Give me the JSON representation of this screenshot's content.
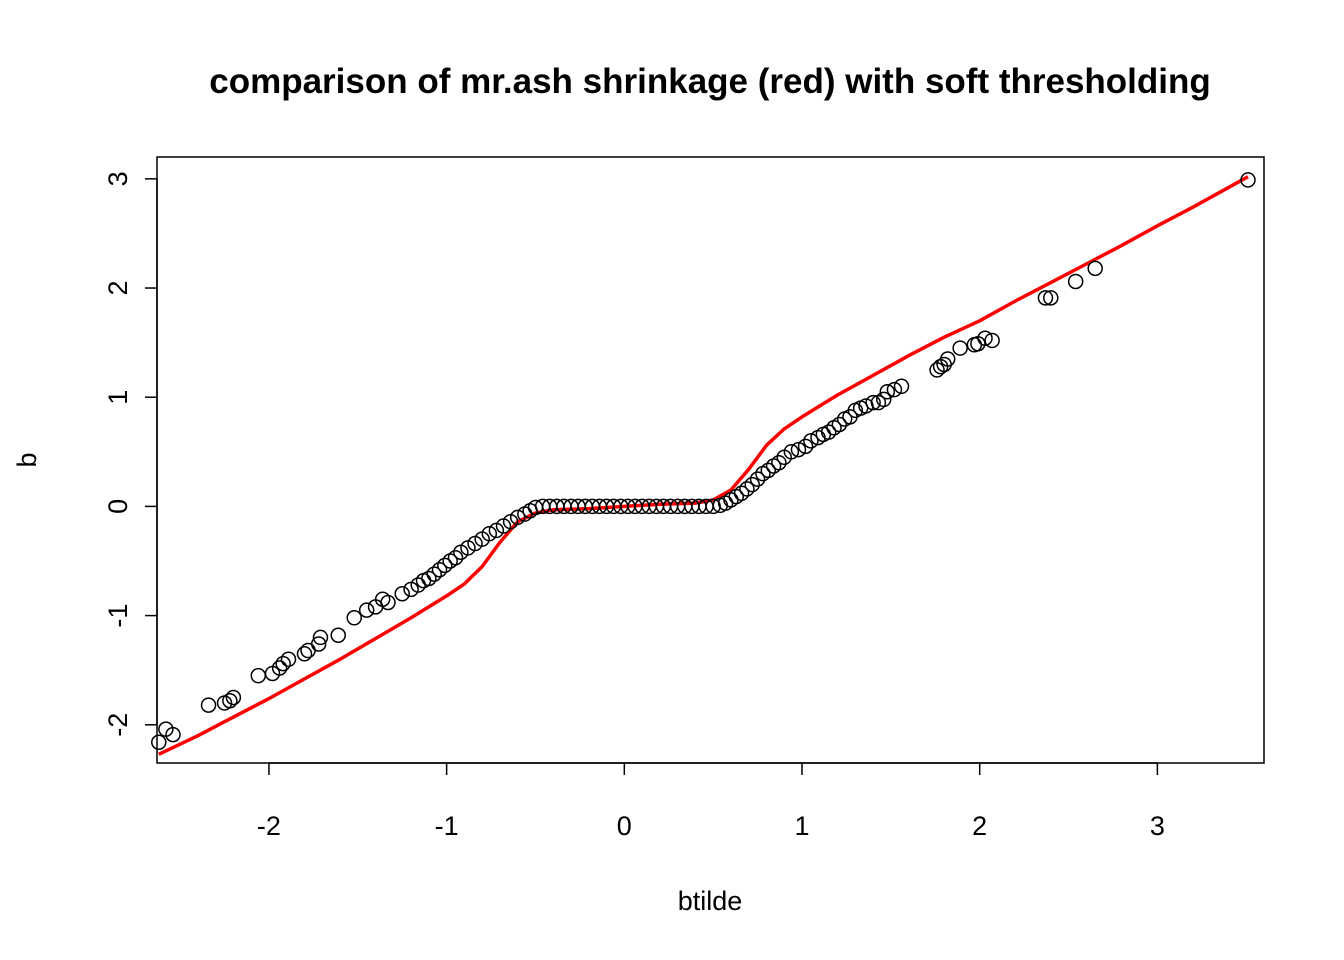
{
  "chart_data": {
    "type": "scatter",
    "title": "comparison of mr.ash shrinkage (red) with soft thresholding",
    "xlabel": "btilde",
    "ylabel": "b",
    "xlim": [
      -2.63,
      3.6
    ],
    "ylim": [
      -2.35,
      3.2
    ],
    "x_ticks": [
      -2,
      -1,
      0,
      1,
      2,
      3
    ],
    "x_tick_labels": [
      "-2",
      "-1",
      "0",
      "1",
      "2",
      "3"
    ],
    "y_ticks": [
      -2,
      -1,
      0,
      1,
      2,
      3
    ],
    "y_tick_labels": [
      "-2",
      "-1",
      "0",
      "1",
      "2",
      "3"
    ],
    "grid": false,
    "legend": "none",
    "series": [
      {
        "marker": "open-circle",
        "color": "#000000",
        "points": [
          [
            3.51,
            2.99
          ],
          [
            2.65,
            2.18
          ],
          [
            2.54,
            2.06
          ],
          [
            2.4,
            1.91
          ],
          [
            2.37,
            1.91
          ],
          [
            2.07,
            1.52
          ],
          [
            2.03,
            1.54
          ],
          [
            1.99,
            1.49
          ],
          [
            1.97,
            1.48
          ],
          [
            1.89,
            1.45
          ],
          [
            1.82,
            1.35
          ],
          [
            1.8,
            1.3
          ],
          [
            1.78,
            1.28
          ],
          [
            1.76,
            1.25
          ],
          [
            1.56,
            1.1
          ],
          [
            1.52,
            1.07
          ],
          [
            1.48,
            1.05
          ],
          [
            1.46,
            0.98
          ],
          [
            1.43,
            0.95
          ],
          [
            1.4,
            0.95
          ],
          [
            1.36,
            0.92
          ],
          [
            1.33,
            0.9
          ],
          [
            1.3,
            0.88
          ],
          [
            1.27,
            0.82
          ],
          [
            1.24,
            0.8
          ],
          [
            1.21,
            0.75
          ],
          [
            1.18,
            0.72
          ],
          [
            1.15,
            0.68
          ],
          [
            1.12,
            0.66
          ],
          [
            1.09,
            0.63
          ],
          [
            1.05,
            0.6
          ],
          [
            1.02,
            0.55
          ],
          [
            0.98,
            0.52
          ],
          [
            0.94,
            0.5
          ],
          [
            0.9,
            0.45
          ],
          [
            0.87,
            0.4
          ],
          [
            0.84,
            0.37
          ],
          [
            0.81,
            0.33
          ],
          [
            0.78,
            0.3
          ],
          [
            0.75,
            0.25
          ],
          [
            0.72,
            0.2
          ],
          [
            0.69,
            0.16
          ],
          [
            0.66,
            0.12
          ],
          [
            0.63,
            0.09
          ],
          [
            0.6,
            0.06
          ],
          [
            0.57,
            0.03
          ],
          [
            0.54,
            0.01
          ],
          [
            0.5,
            0.0
          ],
          [
            0.46,
            0.0
          ],
          [
            0.42,
            0.0
          ],
          [
            0.38,
            0.0
          ],
          [
            0.34,
            0.0
          ],
          [
            0.3,
            0.0
          ],
          [
            0.26,
            0.0
          ],
          [
            0.22,
            0.0
          ],
          [
            0.18,
            0.0
          ],
          [
            0.14,
            0.0
          ],
          [
            0.1,
            0.0
          ],
          [
            0.06,
            0.0
          ],
          [
            0.02,
            0.0
          ],
          [
            -0.02,
            0.0
          ],
          [
            -0.06,
            0.0
          ],
          [
            -0.1,
            0.0
          ],
          [
            -0.14,
            0.0
          ],
          [
            -0.18,
            0.0
          ],
          [
            -0.22,
            0.0
          ],
          [
            -0.26,
            0.0
          ],
          [
            -0.3,
            0.0
          ],
          [
            -0.34,
            0.0
          ],
          [
            -0.38,
            0.0
          ],
          [
            -0.42,
            0.0
          ],
          [
            -0.46,
            0.0
          ],
          [
            -0.5,
            -0.01
          ],
          [
            -0.53,
            -0.04
          ],
          [
            -0.56,
            -0.07
          ],
          [
            -0.6,
            -0.1
          ],
          [
            -0.64,
            -0.14
          ],
          [
            -0.68,
            -0.18
          ],
          [
            -0.72,
            -0.22
          ],
          [
            -0.76,
            -0.25
          ],
          [
            -0.8,
            -0.3
          ],
          [
            -0.84,
            -0.34
          ],
          [
            -0.88,
            -0.38
          ],
          [
            -0.92,
            -0.42
          ],
          [
            -0.95,
            -0.47
          ],
          [
            -0.98,
            -0.5
          ],
          [
            -1.01,
            -0.54
          ],
          [
            -1.04,
            -0.58
          ],
          [
            -1.07,
            -0.62
          ],
          [
            -1.1,
            -0.66
          ],
          [
            -1.13,
            -0.68
          ],
          [
            -1.16,
            -0.72
          ],
          [
            -1.2,
            -0.76
          ],
          [
            -1.25,
            -0.8
          ],
          [
            -1.33,
            -0.88
          ],
          [
            -1.36,
            -0.85
          ],
          [
            -1.4,
            -0.92
          ],
          [
            -1.45,
            -0.95
          ],
          [
            -1.52,
            -1.02
          ],
          [
            -1.61,
            -1.18
          ],
          [
            -1.71,
            -1.2
          ],
          [
            -1.72,
            -1.26
          ],
          [
            -1.78,
            -1.32
          ],
          [
            -1.8,
            -1.35
          ],
          [
            -1.89,
            -1.4
          ],
          [
            -1.92,
            -1.44
          ],
          [
            -1.94,
            -1.48
          ],
          [
            -1.98,
            -1.53
          ],
          [
            -2.06,
            -1.55
          ],
          [
            -2.2,
            -1.75
          ],
          [
            -2.22,
            -1.78
          ],
          [
            -2.25,
            -1.8
          ],
          [
            -2.34,
            -1.82
          ],
          [
            -2.54,
            -2.09
          ],
          [
            -2.58,
            -2.04
          ],
          [
            -2.62,
            -2.16
          ]
        ]
      },
      {
        "type": "line",
        "color": "#ff0000",
        "points": [
          [
            -2.62,
            -2.27
          ],
          [
            -2.4,
            -2.1
          ],
          [
            -2.2,
            -1.93
          ],
          [
            -2.0,
            -1.76
          ],
          [
            -1.8,
            -1.58
          ],
          [
            -1.6,
            -1.4
          ],
          [
            -1.4,
            -1.21
          ],
          [
            -1.2,
            -1.02
          ],
          [
            -1.0,
            -0.82
          ],
          [
            -0.9,
            -0.71
          ],
          [
            -0.8,
            -0.55
          ],
          [
            -0.7,
            -0.33
          ],
          [
            -0.6,
            -0.14
          ],
          [
            -0.5,
            -0.06
          ],
          [
            -0.4,
            -0.03
          ],
          [
            -0.2,
            -0.02
          ],
          [
            0.0,
            0.0
          ],
          [
            0.2,
            0.02
          ],
          [
            0.4,
            0.03
          ],
          [
            0.5,
            0.06
          ],
          [
            0.6,
            0.15
          ],
          [
            0.7,
            0.34
          ],
          [
            0.8,
            0.56
          ],
          [
            0.9,
            0.71
          ],
          [
            1.0,
            0.82
          ],
          [
            1.2,
            1.02
          ],
          [
            1.4,
            1.2
          ],
          [
            1.6,
            1.38
          ],
          [
            1.8,
            1.55
          ],
          [
            2.0,
            1.7
          ],
          [
            2.2,
            1.88
          ],
          [
            2.4,
            2.05
          ],
          [
            2.6,
            2.22
          ],
          [
            2.8,
            2.39
          ],
          [
            3.0,
            2.57
          ],
          [
            3.2,
            2.74
          ],
          [
            3.51,
            3.02
          ]
        ]
      }
    ]
  }
}
